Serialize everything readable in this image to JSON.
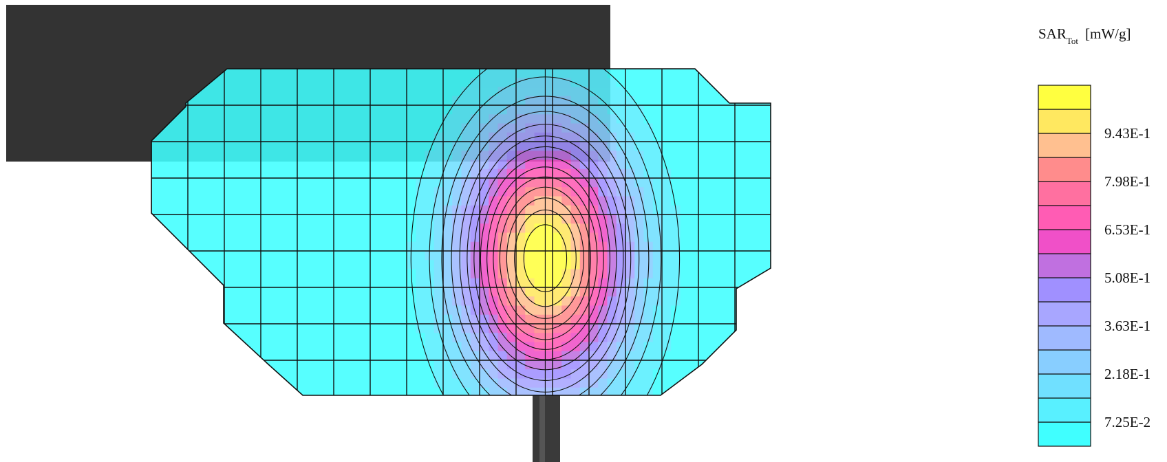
{
  "chart_data": {
    "type": "heatmap",
    "title": "SAR",
    "title_subscript": "Tot",
    "unit": "[mW/g]",
    "legend_placement": "right",
    "grid": true,
    "colorbar": {
      "colors_bottom_to_top": [
        "#40ffff",
        "#58f0ff",
        "#70e0ff",
        "#88ceff",
        "#9fbaff",
        "#a8a6ff",
        "#a090ff",
        "#c070e0",
        "#f050c8",
        "#ff5cb4",
        "#ff70a0",
        "#ff8c8c",
        "#ffc090",
        "#ffe860",
        "#ffff40"
      ],
      "tick_labels": [
        "7.25E-2",
        "2.18E-1",
        "3.63E-1",
        "5.08E-1",
        "6.53E-1",
        "7.98E-1",
        "9.43E-1"
      ]
    },
    "grid_cols": 17,
    "grid_rows": 9,
    "min": 0,
    "max": 1.09,
    "peak": {
      "col": 10.8,
      "row": 5.2
    }
  }
}
